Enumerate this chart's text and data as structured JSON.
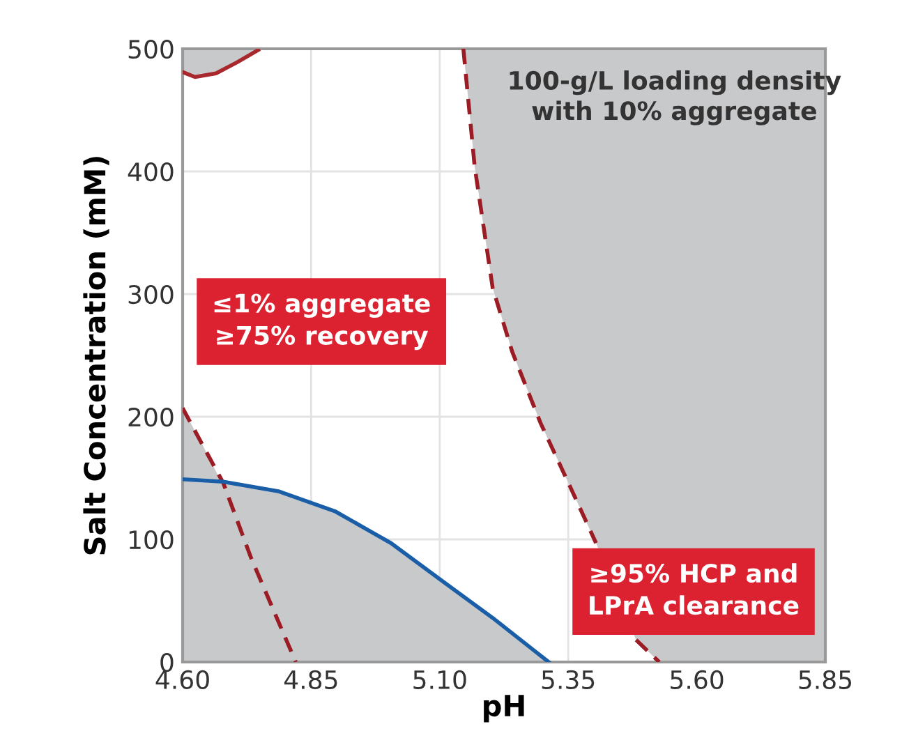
{
  "chart_data": {
    "type": "line",
    "xlabel": "pH",
    "ylabel": "Salt Concentration (mM)",
    "xlim": [
      4.6,
      5.85
    ],
    "xticks": [
      {
        "value": 4.6,
        "label": "4.60"
      },
      4.85,
      {
        "value": 5.1,
        "label": "5.10"
      },
      5.35,
      {
        "value": 5.6,
        "label": "5.60"
      },
      5.85
    ],
    "ylim": [
      0,
      500
    ],
    "yticks": [
      0,
      100,
      200,
      300,
      400,
      500
    ],
    "grid": true,
    "series": [
      {
        "color": "#a8282e",
        "line_style": "solid",
        "x": [
          4.6,
          4.624,
          4.665,
          4.706,
          4.747
        ],
        "values": [
          481,
          477,
          480,
          489,
          499
        ]
      },
      {
        "color": "#9b1c24",
        "line_style": "dashed",
        "x": [
          5.146,
          5.168,
          5.203,
          5.241,
          5.296,
          5.358,
          5.404,
          5.459,
          5.482,
          5.527
        ],
        "values": [
          500,
          404,
          305,
          253,
          195,
          139,
          97,
          null,
          18,
          0
        ]
      },
      {
        "color": "#9b1c24",
        "line_style": "dashed",
        "x": [
          4.6,
          4.64,
          4.679,
          4.733,
          4.779,
          4.82
        ],
        "values": [
          207,
          176,
          146,
          85,
          40,
          0
        ]
      },
      {
        "color": "#1a5ea8",
        "line_style": "solid",
        "x": [
          4.6,
          4.679,
          4.788,
          4.896,
          5.005,
          5.105,
          5.203,
          5.312
        ],
        "values": [
          149,
          147,
          139,
          123,
          97,
          66,
          36,
          0
        ]
      },
      {
        "type": "area",
        "color": "#c8c9cb",
        "x": [
          4.6,
          4.64,
          4.675,
          4.788,
          4.896,
          5.005,
          5.105,
          5.203,
          5.312
        ],
        "values": [
          207,
          176,
          147,
          139,
          123,
          97,
          66,
          36,
          0
        ]
      }
    ],
    "annotations": [
      "100-g/L loading density\nwith 10% aggregate",
      "≤1% aggregate\n≥75% recovery",
      "≥95% HCP and\nLPrA clearance"
    ]
  }
}
